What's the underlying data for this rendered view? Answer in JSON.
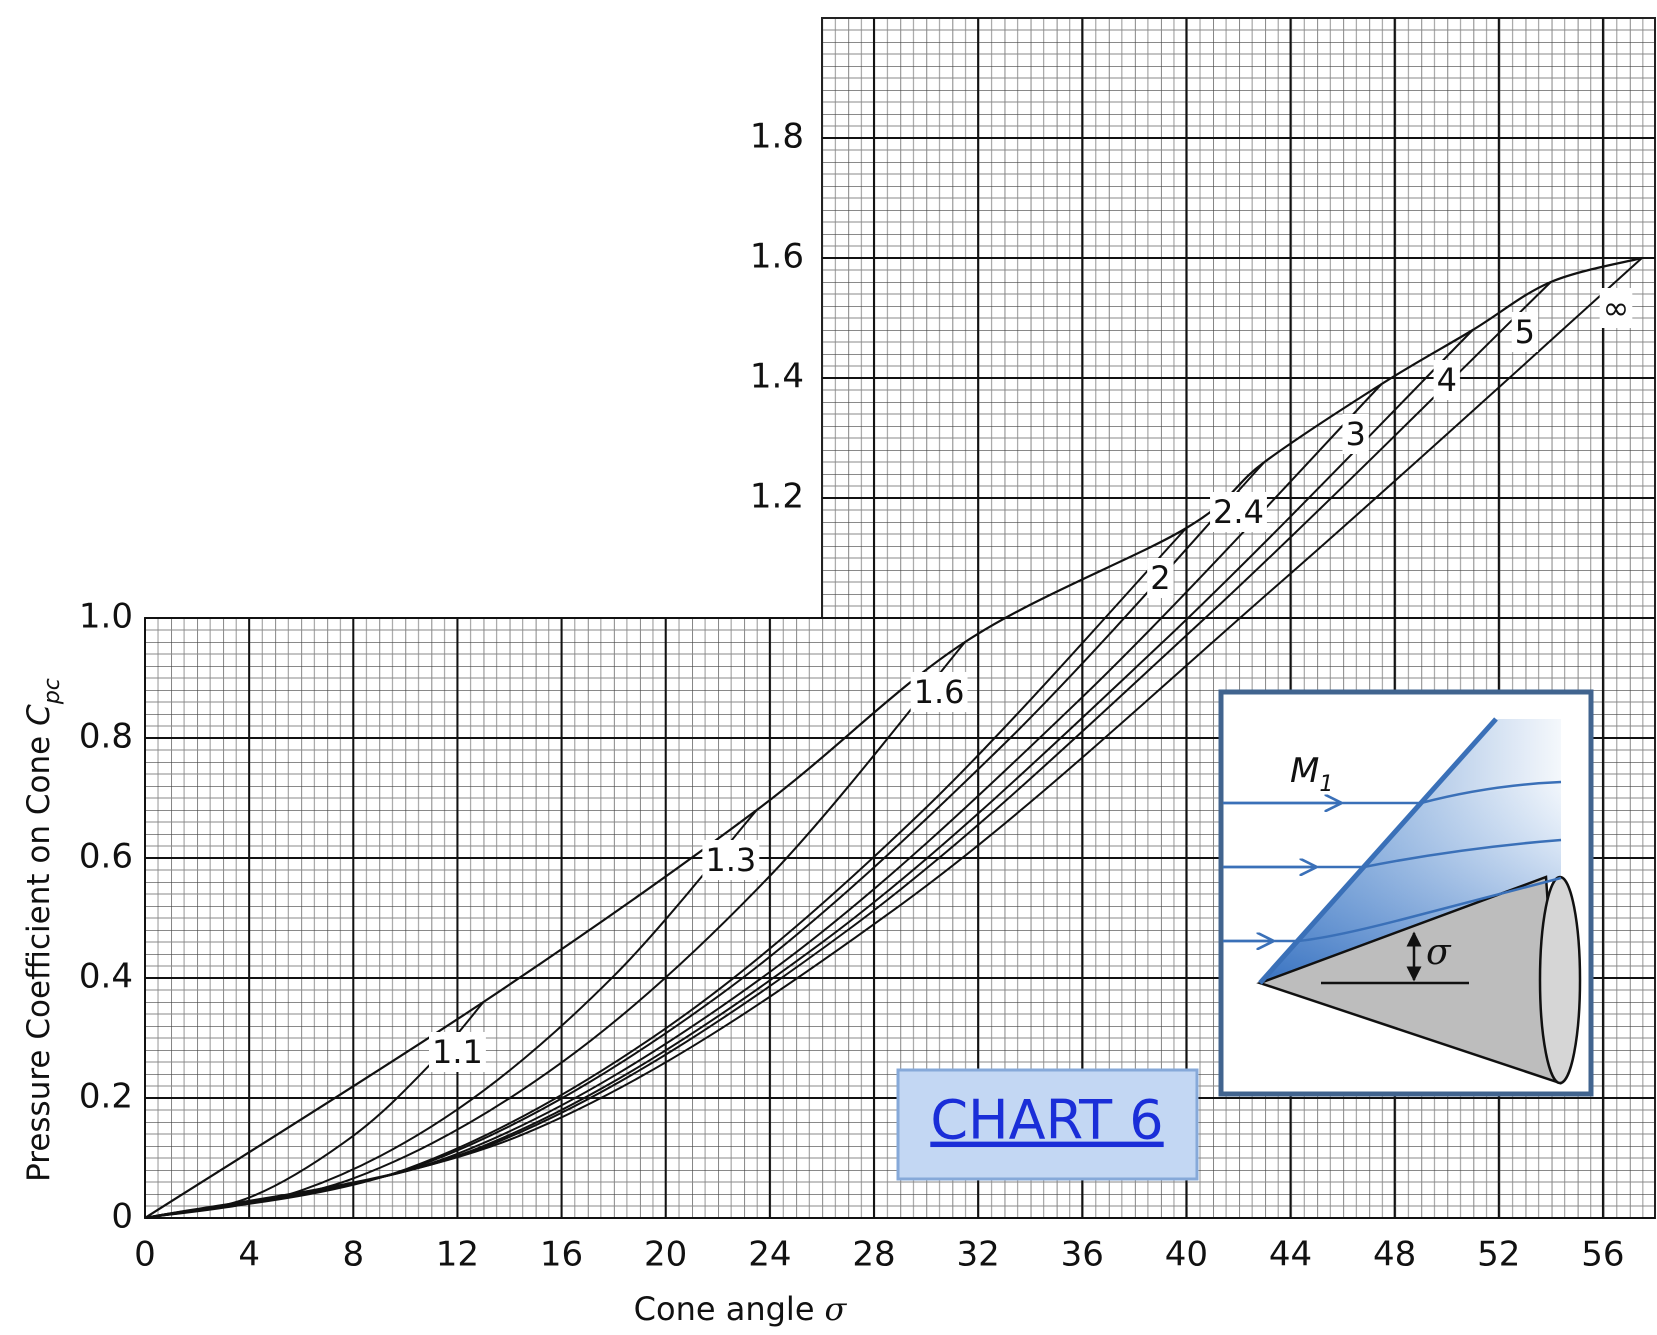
{
  "chart_data": {
    "type": "line",
    "xlabel": "Cone angle",
    "xlabel_symbol": "σ",
    "ylabel": "Pressure Coefficient on Cone",
    "ylabel_symbol": "C",
    "ylabel_subscript": "pc",
    "xlim": [
      0,
      58
    ],
    "ylim": [
      0,
      2
    ],
    "xticks": [
      0,
      4,
      8,
      12,
      16,
      20,
      24,
      28,
      32,
      36,
      40,
      44,
      48,
      52,
      56
    ],
    "yticks": [
      0,
      0.2,
      0.4,
      0.6,
      0.8,
      {
        "value": 1,
        "label": "1.0"
      },
      1.2,
      1.4,
      1.6,
      1.8
    ],
    "grid": true,
    "series": [
      {
        "name": "1.1",
        "color": "#111111",
        "x": [
          0,
          4,
          8,
          11,
          13
        ],
        "values": [
          0,
          0.034,
          0.137,
          0.258,
          0.36
        ]
      },
      {
        "name": "1.3",
        "color": "#111111",
        "x": [
          0,
          6,
          12,
          18,
          23.5
        ],
        "values": [
          0,
          0.046,
          0.181,
          0.403,
          0.68
        ]
      },
      {
        "name": "1.6",
        "color": "#111111",
        "x": [
          0,
          8,
          16,
          24,
          31.5
        ],
        "values": [
          0,
          0.066,
          0.259,
          0.57,
          0.96
        ]
      },
      {
        "name": "2",
        "color": "#111111",
        "x": [
          0,
          10,
          20,
          30,
          40
        ],
        "values": [
          0,
          0.081,
          0.316,
          0.684,
          1.15
        ]
      },
      {
        "name": "2.4",
        "color": "#111111",
        "x": [
          0,
          11,
          22,
          33,
          43
        ],
        "values": [
          0,
          0.095,
          0.369,
          0.79,
          1.26
        ]
      },
      {
        "name": "3",
        "color": "#111111",
        "x": [
          0,
          12,
          24,
          36,
          47.5
        ],
        "values": [
          0,
          0.107,
          0.41,
          0.868,
          1.39
        ]
      },
      {
        "name": "4",
        "color": "#111111",
        "x": [
          0,
          13,
          26,
          39,
          51
        ],
        "values": [
          0,
          0.12,
          0.459,
          0.956,
          1.48
        ]
      },
      {
        "name": "5",
        "color": "#111111",
        "x": [
          0,
          13.5,
          27,
          40.5,
          54
        ],
        "values": [
          0,
          0.126,
          0.48,
          0.991,
          1.56
        ]
      },
      {
        "name": "∞",
        "color": "#111111",
        "x": [
          0,
          14.5,
          29,
          43.5,
          57.5
        ],
        "values": [
          0,
          0.139,
          0.521,
          1.055,
          1.6
        ]
      }
    ],
    "annotation": "CHART 6",
    "inset": {
      "mach_symbol": "M",
      "mach_subscript": "1",
      "angle_symbol": "σ"
    }
  }
}
